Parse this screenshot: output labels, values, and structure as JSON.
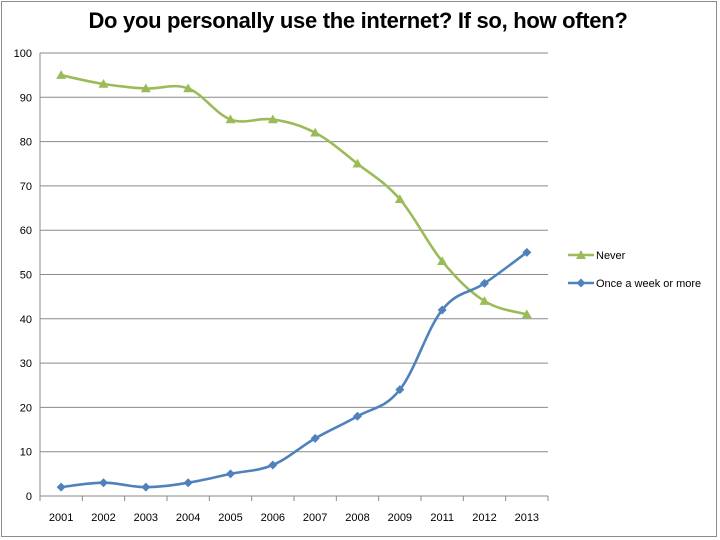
{
  "chart_data": {
    "type": "line",
    "title": "Do you personally use the internet? If so, how often?",
    "xlabel": "",
    "ylabel": "",
    "categories": [
      "2001",
      "2002",
      "2003",
      "2004",
      "2005",
      "2006",
      "2007",
      "2008",
      "2009",
      "2011",
      "2012",
      "2013"
    ],
    "ylim": [
      0,
      100
    ],
    "yticks": [
      0,
      10,
      20,
      30,
      40,
      50,
      60,
      70,
      80,
      90,
      100
    ],
    "grid": true,
    "legend_position": "right",
    "series": [
      {
        "name": "Never",
        "color": "#9bbb59",
        "marker": "triangle",
        "values": [
          95,
          93,
          92,
          92,
          85,
          85,
          82,
          75,
          67,
          53,
          44,
          41
        ]
      },
      {
        "name": "Once a week or more",
        "color": "#4f81bd",
        "marker": "diamond",
        "values": [
          2,
          3,
          2,
          3,
          5,
          7,
          13,
          18,
          24,
          42,
          48,
          55
        ]
      }
    ]
  }
}
